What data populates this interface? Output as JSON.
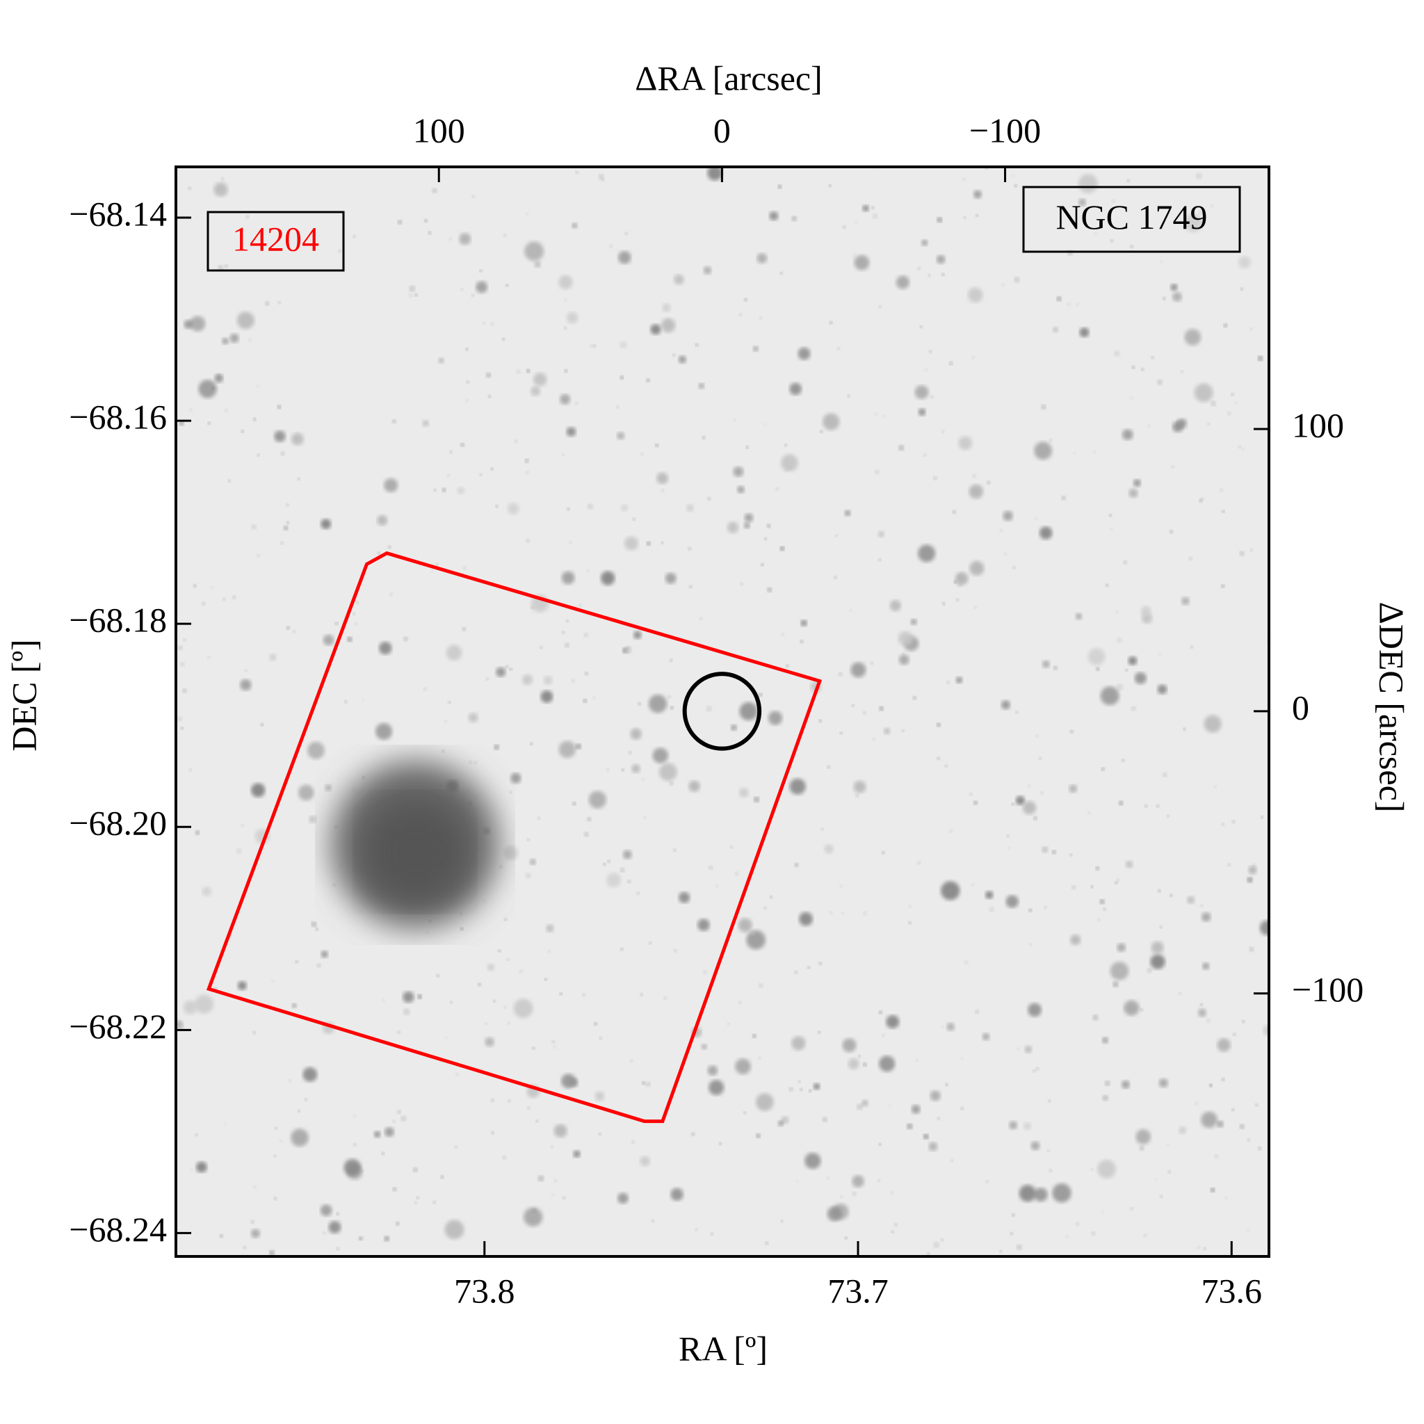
{
  "chart_data": {
    "type": "image",
    "xlabel": "RA [º]",
    "ylabel": "DEC [º]",
    "x2label": "ΔRA [arcsec]",
    "y2label": "ΔDEC [arcsec]",
    "xlim": [
      73.8826,
      73.59
    ],
    "xticks": [
      73.8,
      73.7,
      73.6
    ],
    "ylim": [
      -68.2423,
      -68.135
    ],
    "yticks": [
      {
        "value": -68.14,
        "label": "−68.14"
      },
      {
        "value": -68.16,
        "label": "−68.16"
      },
      {
        "value": -68.18,
        "label": "−68.18"
      },
      {
        "value": -68.2,
        "label": "−68.20"
      },
      {
        "value": -68.22,
        "label": "−68.22"
      },
      {
        "value": -68.24,
        "label": "−68.24"
      }
    ],
    "x2lim": [
      192.9,
      -193.2
    ],
    "x2ticks": [
      100,
      0,
      {
        "value": -100,
        "label": "−100"
      }
    ],
    "y2lim": [
      -193.2,
      192.9
    ],
    "y2ticks": [
      100,
      0,
      {
        "value": -100,
        "label": "−100"
      }
    ],
    "annotations": [
      {
        "text": "14204",
        "color": "#ff0000",
        "corner": "upper left"
      },
      {
        "text": "NGC 1749",
        "color": "#000000",
        "corner": "upper right"
      }
    ],
    "footprint": {
      "color": "#ff0000",
      "x": [
        125.5,
        118.4,
        -34.5,
        21.0,
        27.4,
        181.3
      ],
      "y": [
        52.1,
        56.0,
        10.7,
        -145.3,
        -145.3,
        -98.4
      ]
    },
    "circle": {
      "color": "#000000",
      "x": 0,
      "y": 0,
      "radius": 13.2
    }
  }
}
